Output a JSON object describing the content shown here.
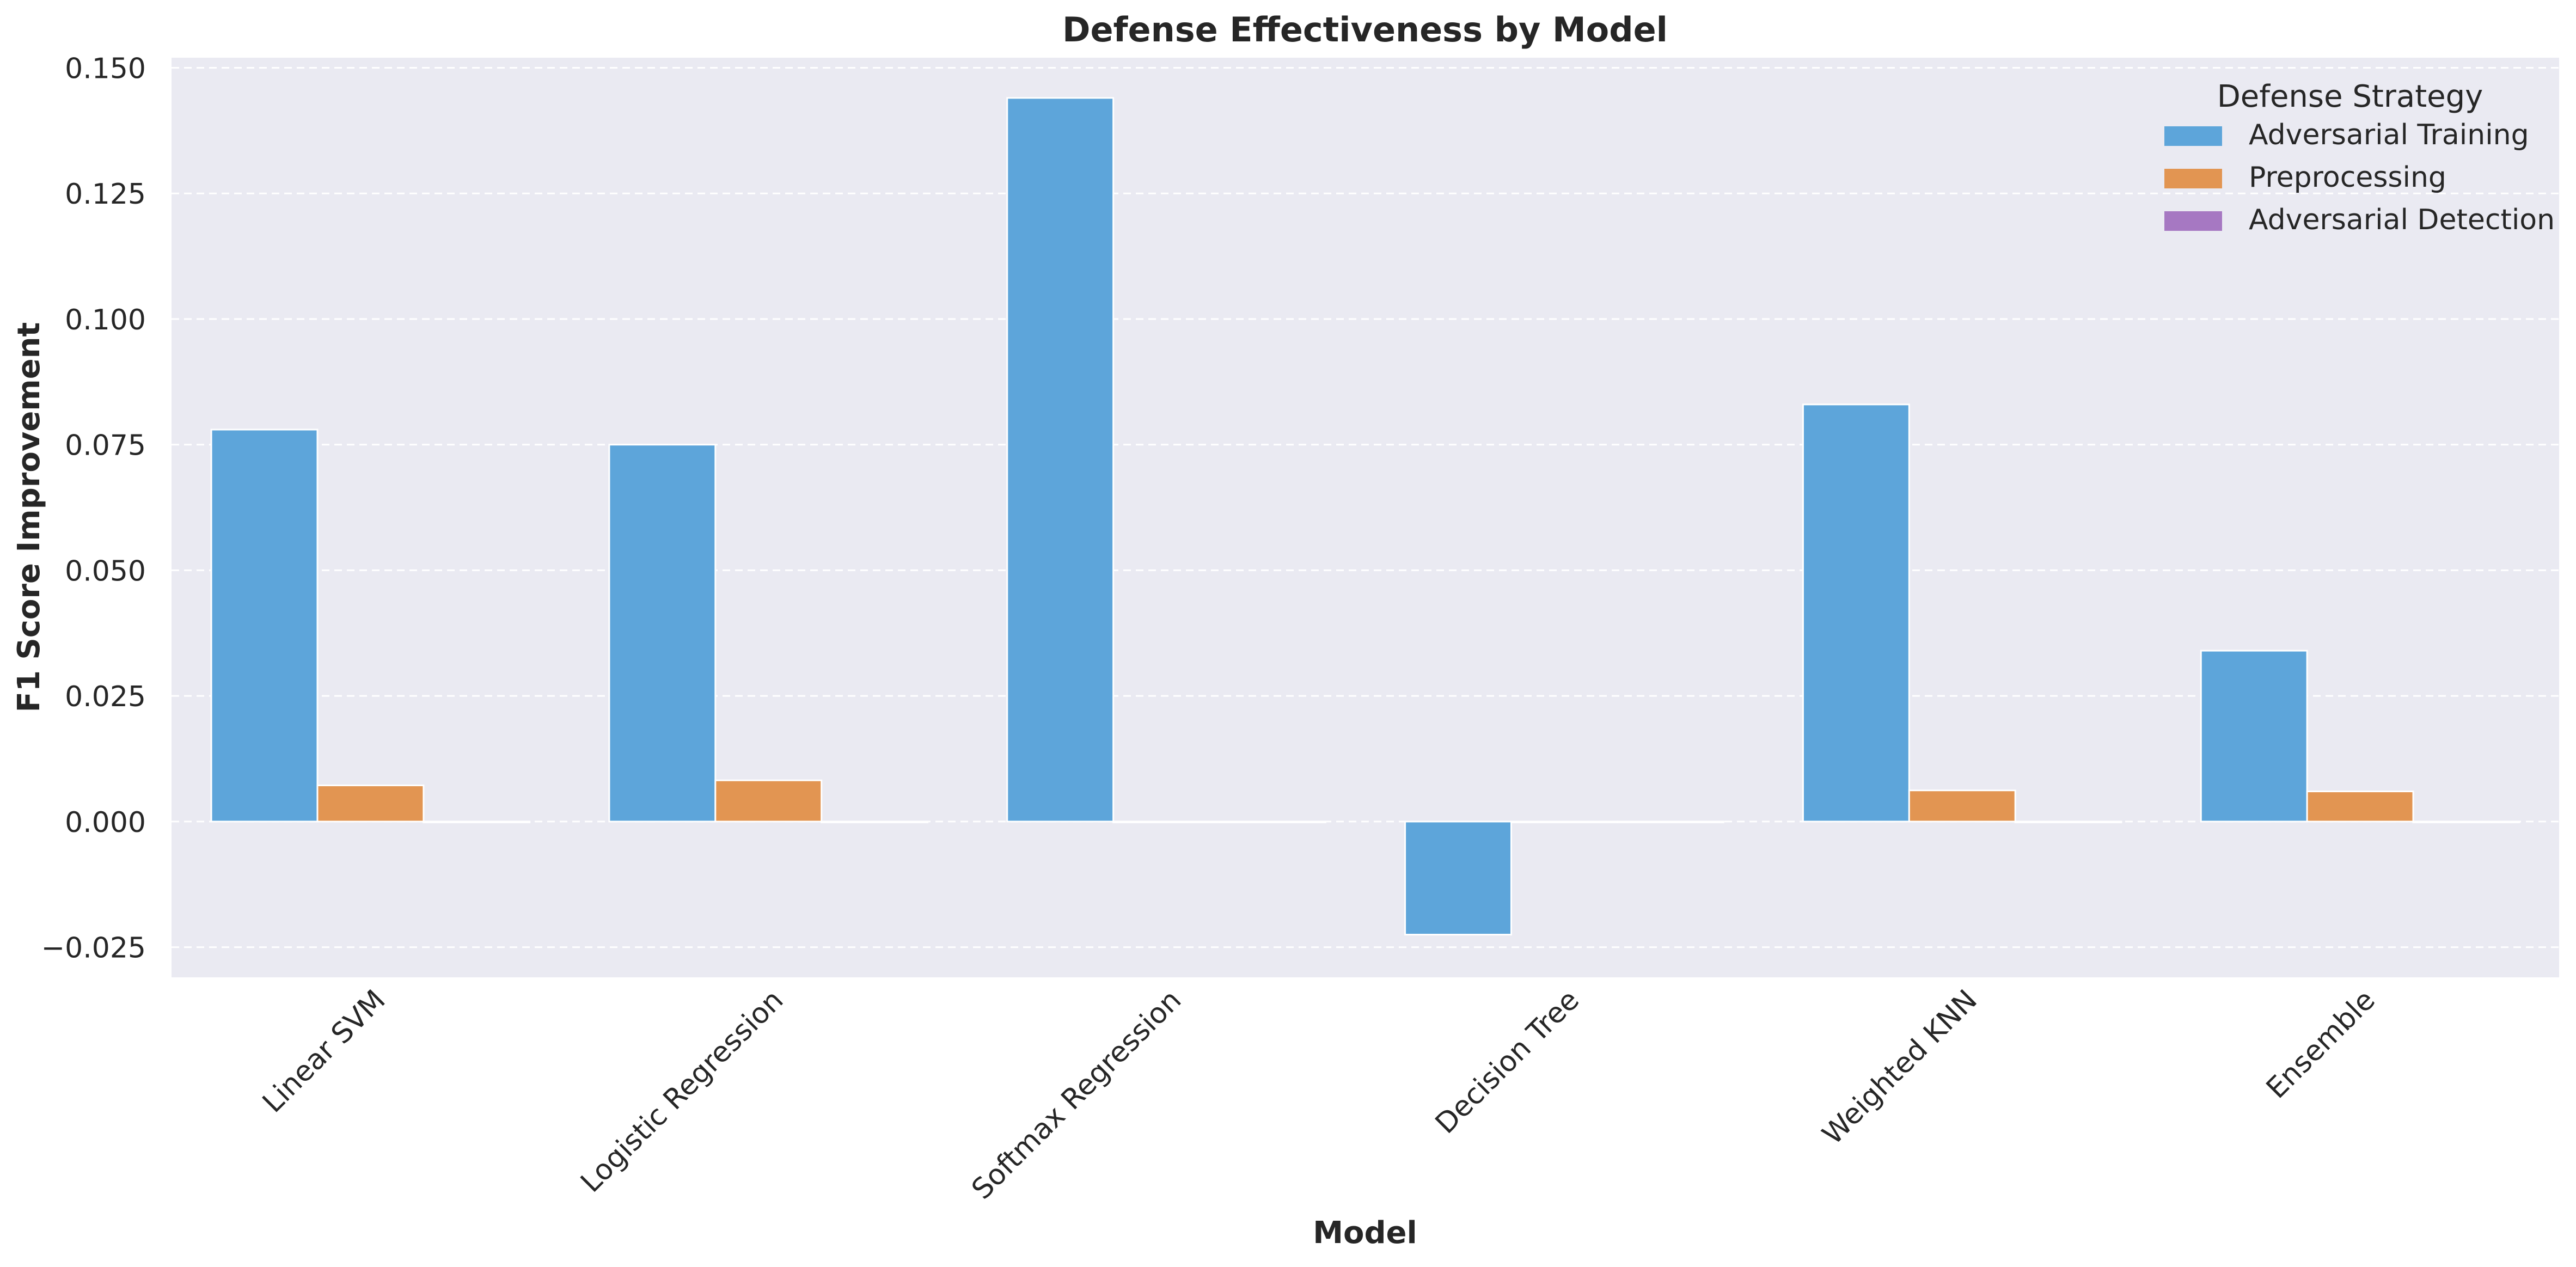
{
  "chart_data": {
    "type": "bar",
    "title": "Defense Effectiveness by Model",
    "xlabel": "Model",
    "ylabel": "F1 Score Improvement",
    "categories": [
      "Linear SVM",
      "Logistic Regression",
      "Softmax Regression",
      "Decision Tree",
      "Weighted KNN",
      "Ensemble"
    ],
    "series": [
      {
        "name": "Adversarial Training",
        "color": "#5DA5DA",
        "values": [
          0.078,
          0.075,
          0.144,
          -0.0225,
          0.083,
          0.034
        ]
      },
      {
        "name": "Preprocessing",
        "color": "#E29552",
        "values": [
          0.0072,
          0.0082,
          0.0,
          0.0,
          0.0062,
          0.006
        ]
      },
      {
        "name": "Adversarial Detection",
        "color": "#A678C2",
        "values": [
          0.0,
          0.0,
          0.0,
          0.0,
          0.0,
          0.0
        ]
      }
    ],
    "ylim": [
      -0.031,
      0.152
    ],
    "yticks": [
      -0.025,
      0.0,
      0.025,
      0.05,
      0.075,
      0.1,
      0.125,
      0.15
    ],
    "ytick_labels": [
      "−0.025",
      "0.000",
      "0.025",
      "0.050",
      "0.075",
      "0.100",
      "0.125",
      "0.150"
    ],
    "grid": true,
    "legend_title": "Defense Strategy",
    "legend_position": "top-right",
    "background": "#EAEAF2"
  }
}
